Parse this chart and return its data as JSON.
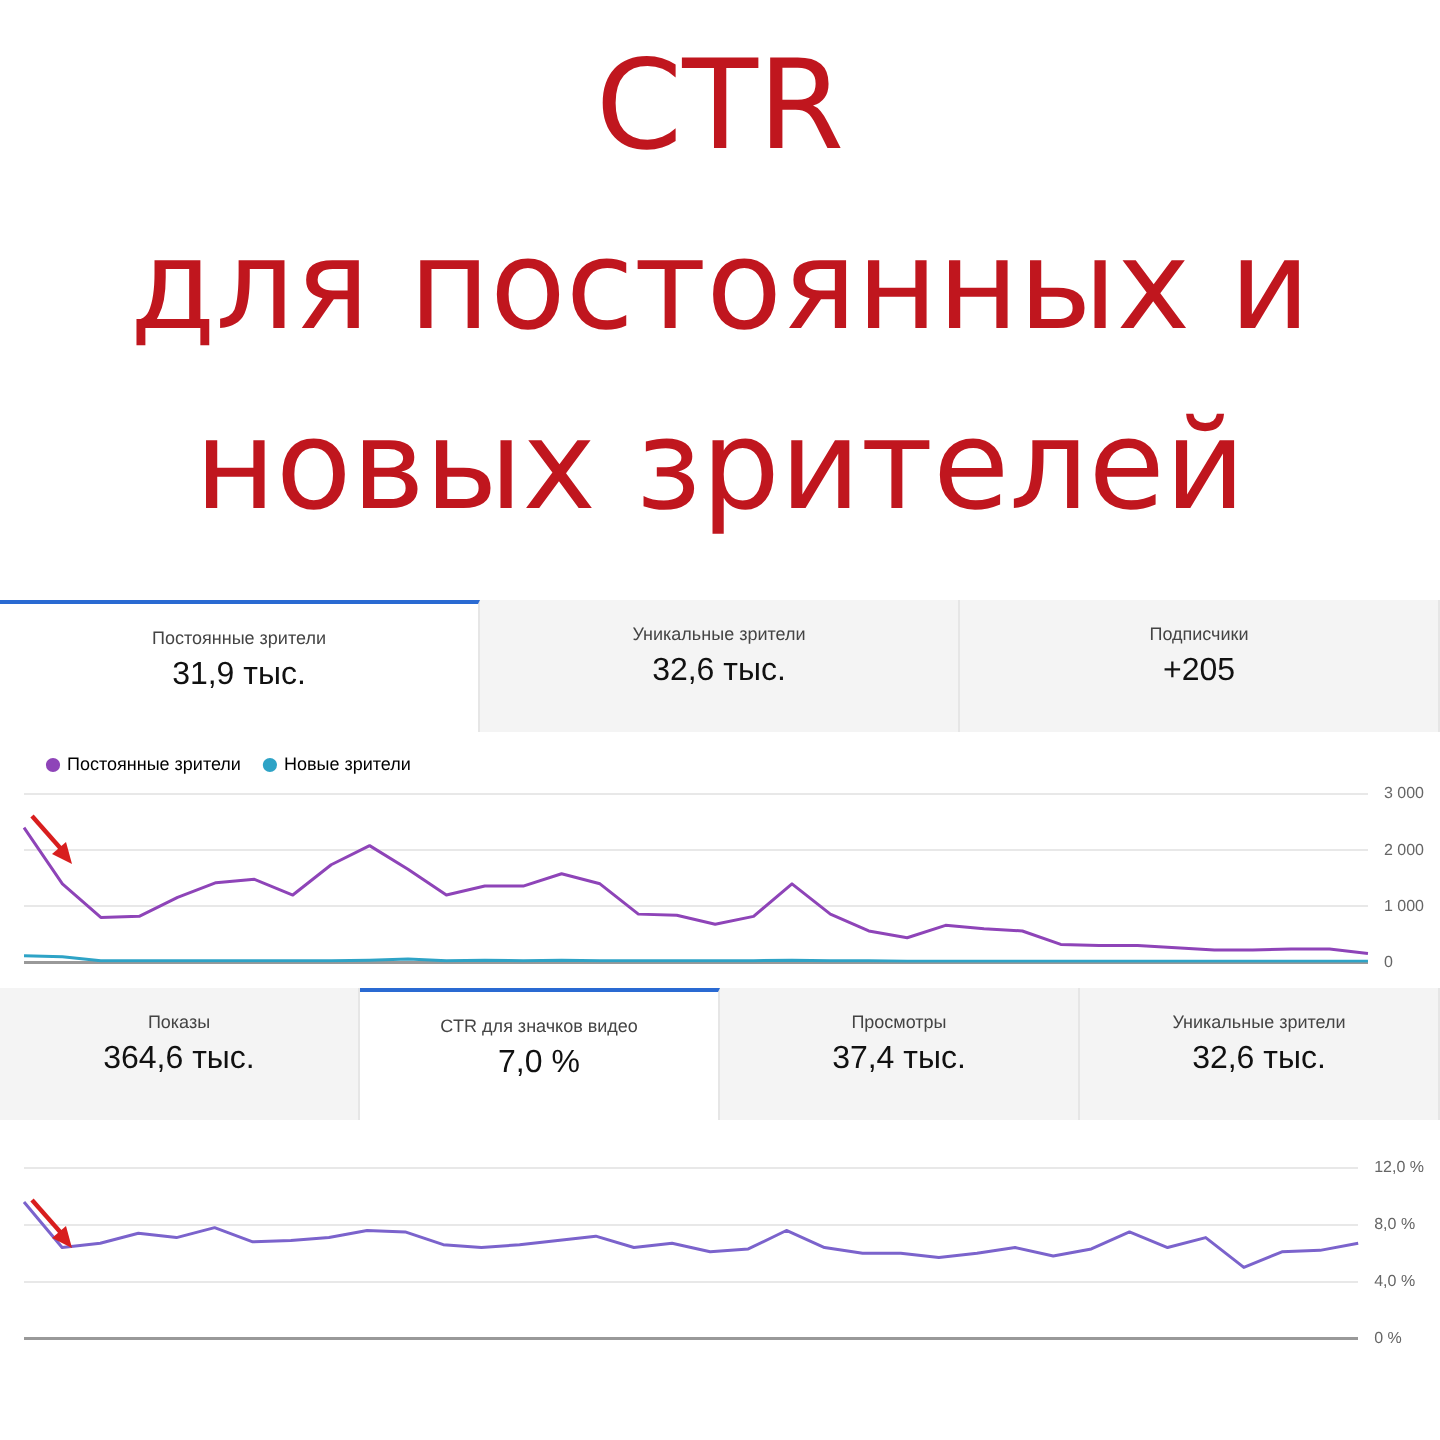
{
  "chart_data": [
    {
      "type": "line",
      "title": "CTR для постоянных и новых зрителей",
      "annotations": [
        "Постоянные зрители",
        "31,9 тыс.",
        "Уникальные зрители",
        "32,6 тыс.",
        "Подписчики",
        "+205"
      ],
      "categories": [
        null,
        null,
        null,
        null,
        null,
        null,
        null,
        null,
        null,
        null,
        null,
        null,
        null,
        null,
        null,
        null,
        null,
        null,
        null,
        null,
        null,
        null,
        null,
        null,
        null,
        null,
        null,
        null,
        null,
        null,
        null,
        null,
        null,
        null,
        null,
        null
      ],
      "series": [
        {
          "name": "Постоянные зрители",
          "color": "#8e44b8",
          "values": [
            2400,
            1400,
            800,
            820,
            1160,
            1420,
            1480,
            1200,
            1740,
            2080,
            1660,
            1200,
            1360,
            1360,
            1580,
            1400,
            860,
            840,
            680,
            820,
            1400,
            860,
            560,
            440,
            660,
            600,
            560,
            320,
            300,
            300,
            260,
            220,
            220,
            240,
            240,
            160
          ]
        },
        {
          "name": "Новые зрители",
          "color": "#2ea3c6",
          "values": [
            120,
            100,
            30,
            30,
            30,
            30,
            30,
            30,
            30,
            40,
            60,
            30,
            40,
            30,
            40,
            30,
            30,
            30,
            30,
            30,
            40,
            30,
            30,
            20,
            20,
            20,
            20,
            20,
            20,
            20,
            20,
            20,
            20,
            20,
            20,
            20
          ]
        }
      ],
      "ylim": [
        0,
        3000
      ],
      "yticks": [
        0,
        {
          "value": 1000,
          "label": "1 000"
        },
        {
          "value": 2000,
          "label": "2 000"
        },
        {
          "value": 3000,
          "label": "3 000"
        }
      ],
      "grid": "y",
      "legend": "top left",
      "marker": "none",
      "line_style": "solid"
    },
    {
      "type": "line",
      "annotations": [
        "Показы",
        "364,6 тыс.",
        "CTR для значков видео",
        "7,0 %",
        "Просмотры",
        "37,4 тыс.",
        "Уникальные зрители",
        "32,6 тыс."
      ],
      "categories": [
        null,
        null,
        null,
        null,
        null,
        null,
        null,
        null,
        null,
        null,
        null,
        null,
        null,
        null,
        null,
        null,
        null,
        null,
        null,
        null,
        null,
        null,
        null,
        null,
        null,
        null,
        null,
        null,
        null,
        null,
        null,
        null,
        null,
        null,
        null,
        null
      ],
      "series": [
        {
          "color": "#7b63cc",
          "values": [
            9.6,
            6.4,
            6.7,
            7.4,
            7.1,
            7.8,
            6.8,
            6.9,
            7.1,
            7.6,
            7.5,
            6.6,
            6.4,
            6.6,
            6.9,
            7.2,
            6.4,
            6.7,
            6.1,
            6.3,
            7.6,
            6.4,
            6.0,
            6.0,
            5.7,
            6.0,
            6.4,
            5.8,
            6.3,
            7.5,
            6.4,
            7.1,
            5.0,
            6.1,
            6.2,
            6.7
          ]
        }
      ],
      "ylim": [
        0,
        12
      ],
      "yticks": [
        {
          "value": 0,
          "label": "0 %"
        },
        {
          "value": 4,
          "label": "4,0 %"
        },
        {
          "value": 8,
          "label": "8,0 %"
        },
        {
          "value": 12,
          "label": "12,0 %"
        }
      ],
      "grid": "y",
      "marker": "none",
      "line_style": "solid"
    }
  ]
}
